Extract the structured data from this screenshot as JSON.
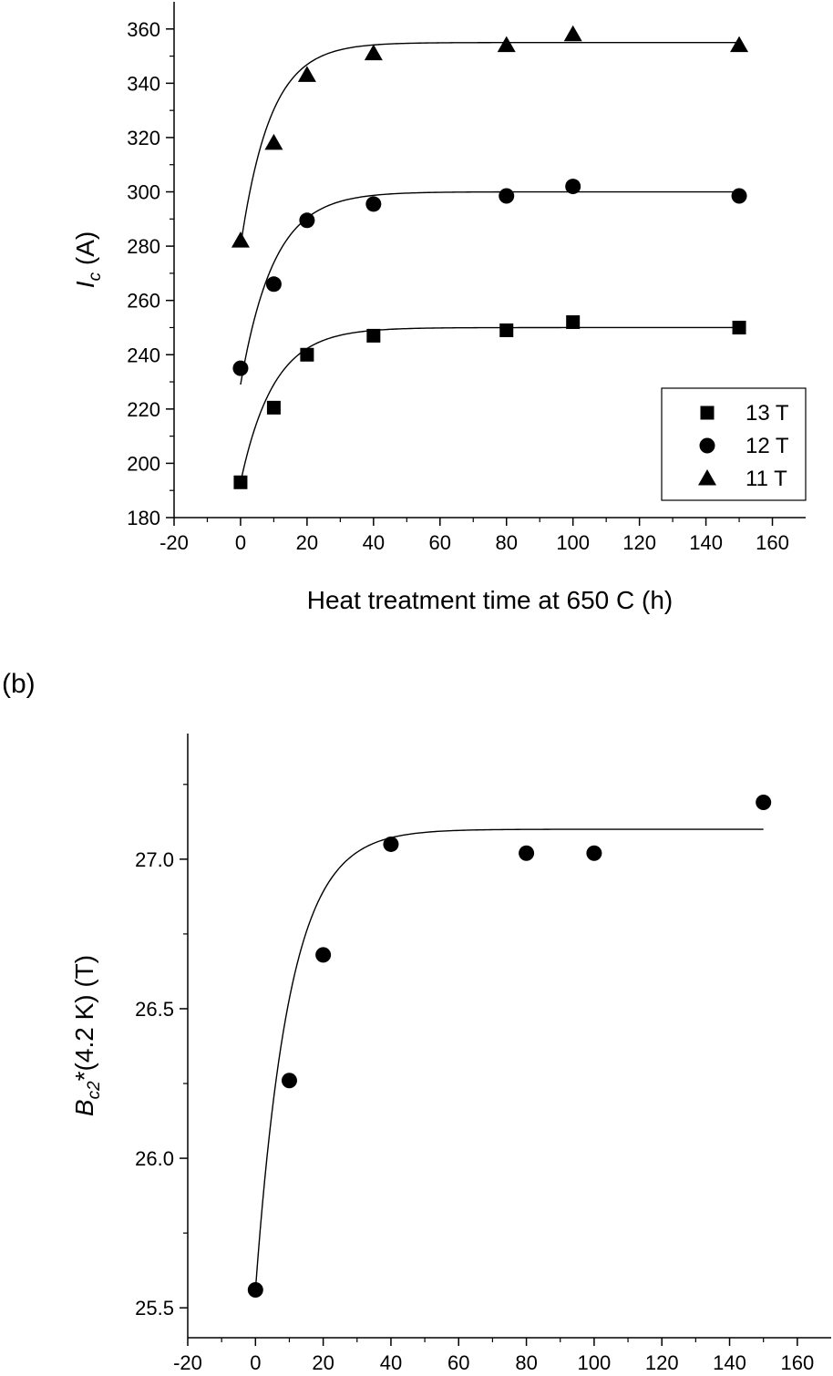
{
  "chart_data": [
    {
      "type": "scatter",
      "panel_label": "",
      "xlabel": "Heat treatment time at 650 C (h)",
      "ylabel_main": "I",
      "ylabel_sub": "c",
      "ylabel_unit": " (A)",
      "xlim": [
        -20,
        170
      ],
      "ylim": [
        180,
        370
      ],
      "xticks": [
        -20,
        0,
        20,
        40,
        60,
        80,
        100,
        120,
        140,
        160
      ],
      "yticks": [
        180,
        200,
        220,
        240,
        260,
        280,
        300,
        320,
        340,
        360
      ],
      "legend": {
        "position": "bottom-right"
      },
      "series": [
        {
          "name": "13 T",
          "marker": "square",
          "x": [
            0,
            10,
            20,
            40,
            80,
            100,
            150
          ],
          "y": [
            193,
            220.5,
            240,
            247,
            249,
            252,
            250
          ],
          "fit": {
            "base": 193,
            "plateau": 250,
            "tau": 10
          }
        },
        {
          "name": "12 T",
          "marker": "circle",
          "x": [
            0,
            10,
            20,
            40,
            80,
            100,
            150
          ],
          "y": [
            235,
            266,
            289.5,
            295.5,
            298.5,
            302,
            298.5
          ],
          "fit": {
            "base": 229,
            "plateau": 300,
            "tau": 10
          }
        },
        {
          "name": "11 T",
          "marker": "triangle",
          "x": [
            0,
            10,
            20,
            40,
            80,
            100,
            150
          ],
          "y": [
            282,
            318,
            343,
            351,
            354,
            358,
            354
          ],
          "fit": {
            "base": 280,
            "plateau": 355,
            "tau": 9
          }
        }
      ]
    },
    {
      "type": "scatter",
      "panel_label": "(b)",
      "xlabel": "Heat treatment time at 650 C (h)",
      "ylabel_main": "B",
      "ylabel_sub": "c2",
      "ylabel_unit": "*(4.2 K) (T)",
      "xlim": [
        -20,
        170
      ],
      "ylim": [
        25.4,
        27.42
      ],
      "xticks": [
        -20,
        0,
        20,
        40,
        60,
        80,
        100,
        120,
        140,
        160
      ],
      "yticks": [
        25.5,
        26.0,
        26.5,
        27.0
      ],
      "ytick_labels": [
        "25.5",
        "26.0",
        "26.5",
        "27.0"
      ],
      "series": [
        {
          "marker": "circle",
          "x": [
            0,
            10,
            20,
            40,
            80,
            100,
            150
          ],
          "y": [
            25.56,
            26.26,
            26.68,
            27.05,
            27.02,
            27.02,
            27.19
          ],
          "fit": {
            "base": 25.56,
            "plateau": 27.1,
            "tau": 10
          }
        }
      ]
    }
  ]
}
